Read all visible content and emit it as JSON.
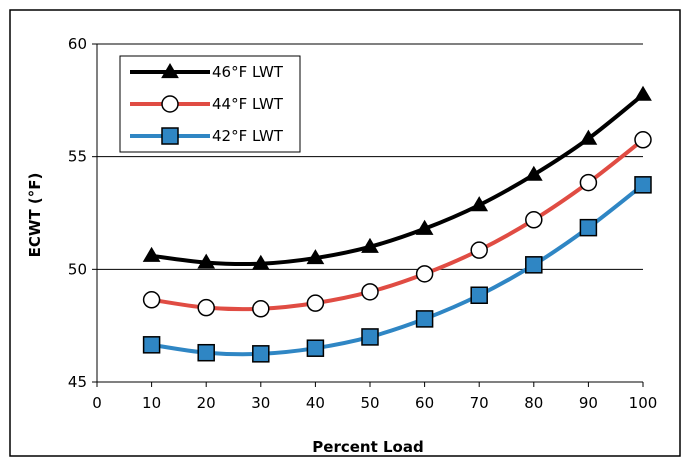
{
  "chart_data": {
    "type": "line",
    "title": "",
    "xlabel": "Percent Load",
    "ylabel": "ECWT (°F)",
    "xlim": [
      0,
      100
    ],
    "ylim": [
      45,
      60
    ],
    "x_ticks": [
      0,
      10,
      20,
      30,
      40,
      50,
      60,
      70,
      80,
      90,
      100
    ],
    "y_ticks": [
      45,
      50,
      55,
      60
    ],
    "grid": "horizontal major lines",
    "legend_position": "top-left",
    "x": [
      10,
      20,
      30,
      40,
      50,
      60,
      70,
      80,
      90,
      100
    ],
    "series": [
      {
        "name": "46°F LWT",
        "color": "#000000",
        "marker": "triangle",
        "values": [
          50.6,
          50.3,
          50.25,
          50.5,
          51.0,
          51.8,
          52.85,
          54.2,
          55.8,
          57.75
        ]
      },
      {
        "name": "44°F LWT",
        "color": "#e04c43",
        "marker": "circle",
        "values": [
          48.65,
          48.3,
          48.25,
          48.5,
          49.0,
          49.8,
          50.85,
          52.2,
          53.85,
          55.75
        ]
      },
      {
        "name": "42°F LWT",
        "color": "#2f86c4",
        "marker": "square",
        "values": [
          46.65,
          46.3,
          46.25,
          46.5,
          47.0,
          47.8,
          48.85,
          50.2,
          51.85,
          53.75
        ]
      }
    ]
  }
}
